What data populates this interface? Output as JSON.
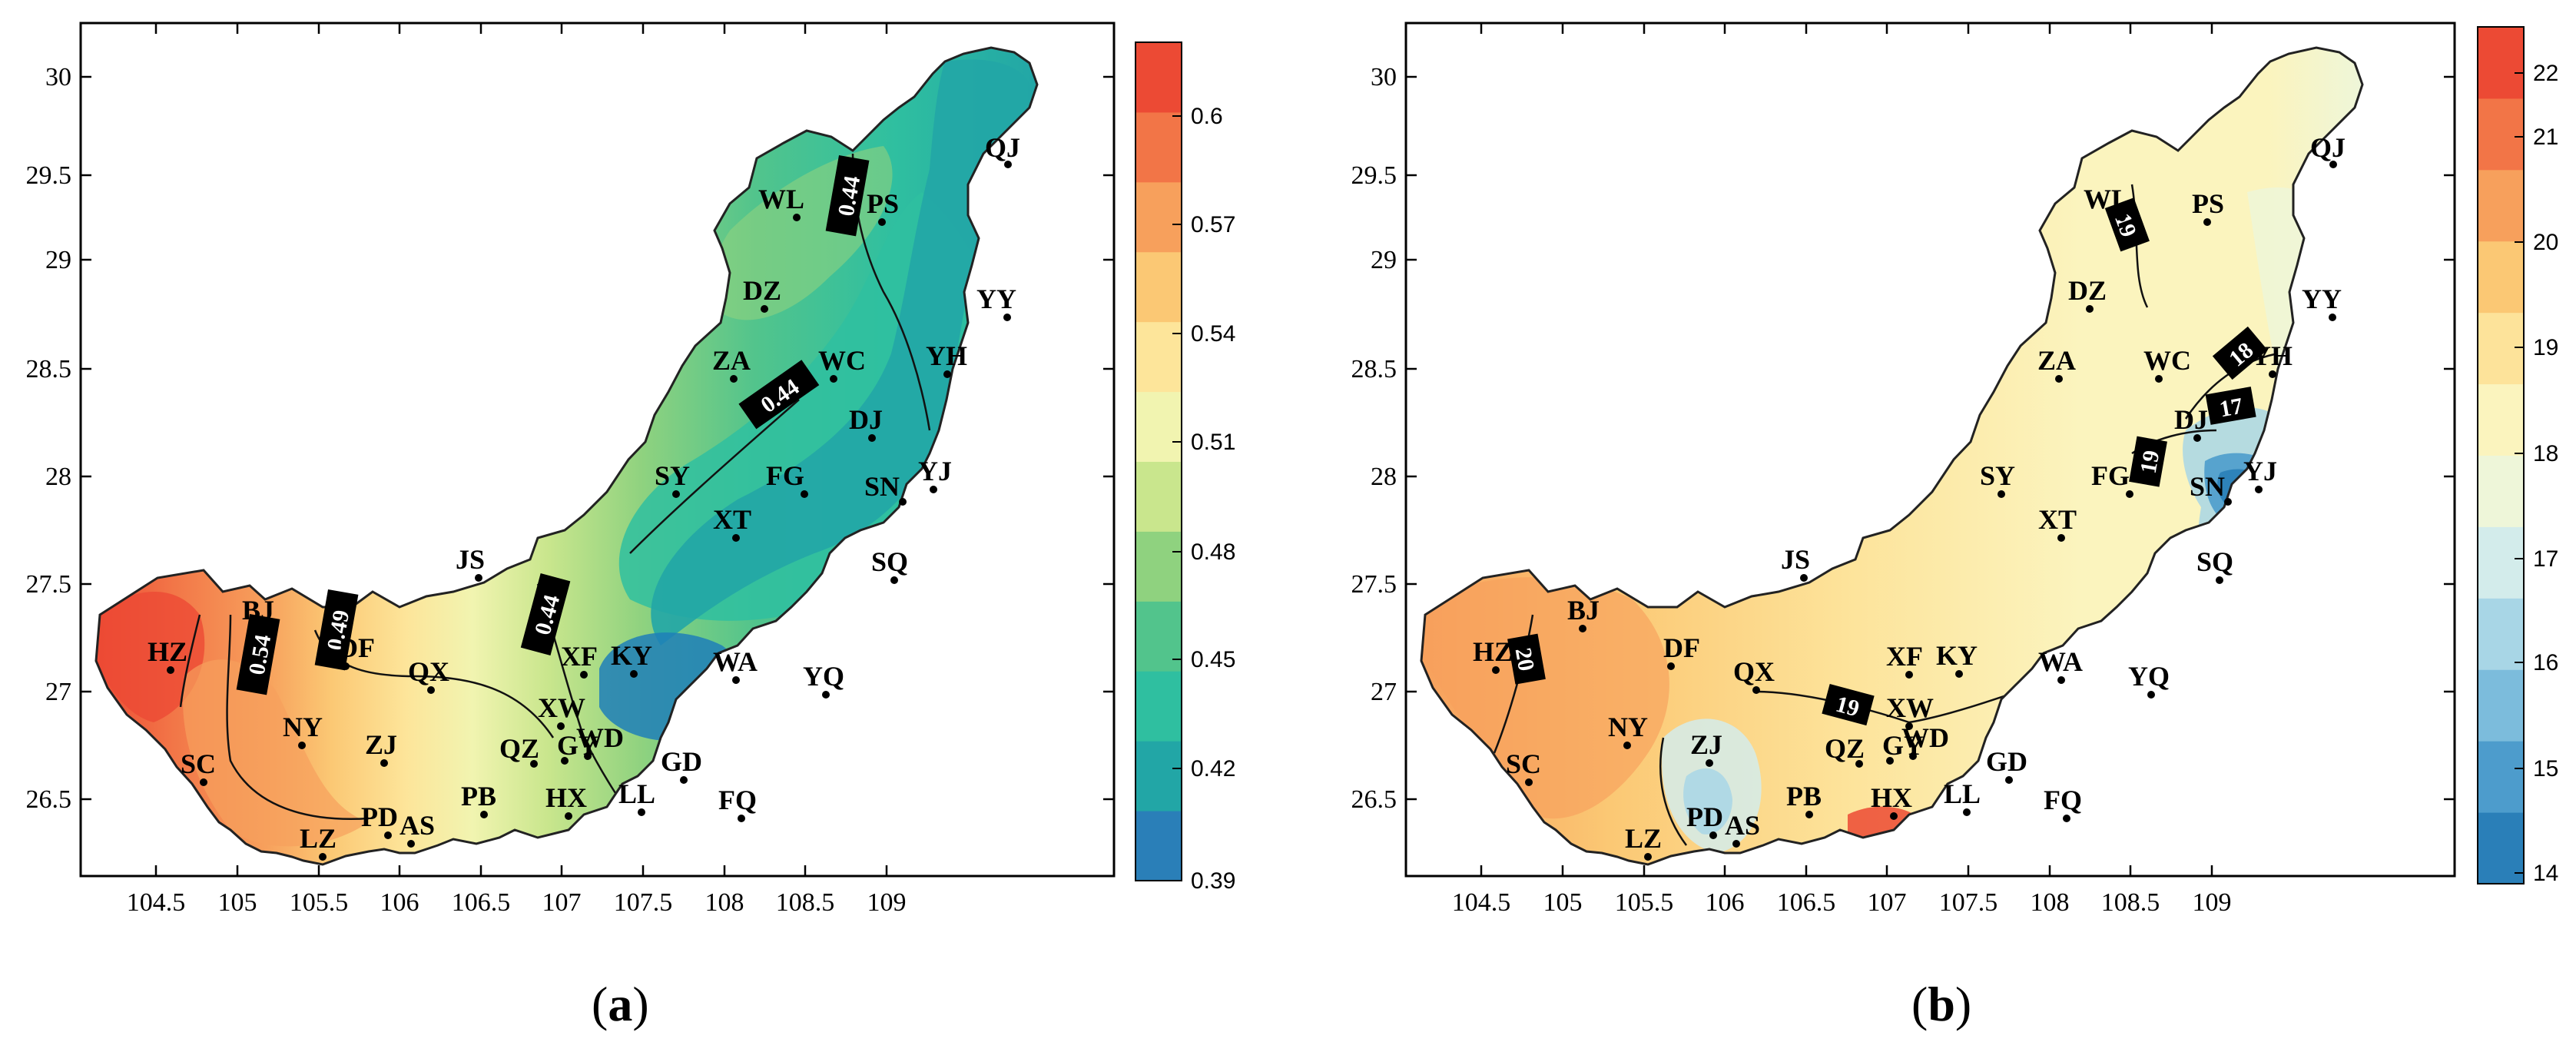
{
  "figure": {
    "panels": [
      {
        "id": "a",
        "label_open": "(",
        "label_letter": "a",
        "label_close": ")",
        "x_ticks": [
          "104.5",
          "105",
          "105.5",
          "106",
          "106.5",
          "107",
          "107.5",
          "108",
          "108.5",
          "109"
        ],
        "y_ticks": [
          "26.5",
          "27",
          "27.5",
          "28",
          "28.5",
          "29",
          "29.5",
          "30"
        ],
        "colorbar_ticks": [
          "0.39",
          "0.42",
          "0.45",
          "0.48",
          "0.51",
          "0.54",
          "0.57",
          "0.6"
        ],
        "colorbar_colors": [
          "#2a7fb8",
          "#22a6a6",
          "#2fbfa0",
          "#52c48c",
          "#8fd27f",
          "#c9e68d",
          "#f1f4b0",
          "#fde59a",
          "#fbc874",
          "#f7a05c",
          "#f27547",
          "#ec4a34"
        ],
        "contour_labels": [
          "0.44",
          "0.44",
          "0.44",
          "0.54",
          "0.49"
        ],
        "stations": [
          "QJ",
          "WL",
          "PS",
          "DZ",
          "YY",
          "ZA",
          "WC",
          "YH",
          "DJ",
          "SY",
          "FG",
          "SN",
          "YJ",
          "XT",
          "SQ",
          "JS",
          "BJ",
          "HZ",
          "DF",
          "QX",
          "XF",
          "KY",
          "WA",
          "YQ",
          "XW",
          "NY",
          "ZJ",
          "QZ",
          "GY",
          "WD",
          "GD",
          "SC",
          "PB",
          "HX",
          "LL",
          "FQ",
          "PD",
          "AS",
          "LZ"
        ]
      },
      {
        "id": "b",
        "label_open": "(",
        "label_letter": "b",
        "label_close": ")",
        "x_ticks": [
          "104.5",
          "105",
          "105.5",
          "106",
          "106.5",
          "107",
          "107.5",
          "108",
          "108.5",
          "109"
        ],
        "y_ticks": [
          "26.5",
          "27",
          "27.5",
          "28",
          "28.5",
          "29",
          "29.5",
          "30"
        ],
        "colorbar_ticks": [
          "14",
          "15",
          "16",
          "17",
          "18",
          "19",
          "20",
          "21",
          "22"
        ],
        "colorbar_colors": [
          "#2a7fb8",
          "#4d9ccc",
          "#7cbcdc",
          "#a8d6e6",
          "#d3eceb",
          "#eef6d9",
          "#fbf4be",
          "#fde39a",
          "#fbc874",
          "#f7a05c",
          "#f27547",
          "#ec4a34"
        ],
        "contour_labels": [
          "19",
          "18",
          "17",
          "19",
          "20",
          "19"
        ],
        "stations": [
          "QJ",
          "WL",
          "PS",
          "DZ",
          "YY",
          "YH",
          "ZA",
          "WC",
          "DJ",
          "YJ",
          "SN",
          "SY",
          "FG",
          "XT",
          "SQ",
          "JS",
          "BJ",
          "HZ",
          "DF",
          "QX",
          "XF",
          "KY",
          "WA",
          "YQ",
          "XW",
          "NY",
          "ZJ",
          "SC",
          "QZ",
          "GY",
          "WD",
          "GD",
          "PB",
          "HX",
          "LL",
          "FQ",
          "PD",
          "AS",
          "LZ"
        ]
      }
    ]
  }
}
